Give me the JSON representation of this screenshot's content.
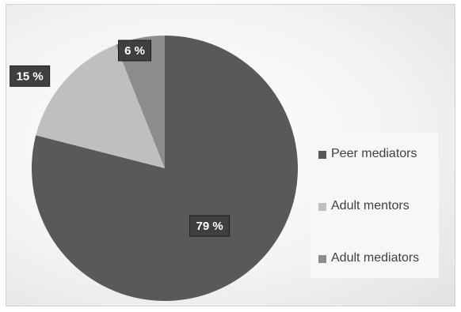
{
  "chart_data": {
    "type": "pie",
    "categories": [
      "Peer mediators",
      "Adult mentors",
      "Adult mediators"
    ],
    "values": [
      79,
      15,
      6
    ],
    "data_labels": [
      "79 %",
      "15 %",
      "6 %"
    ],
    "colors": [
      "#595959",
      "#bfbfbf",
      "#8c8c8c"
    ],
    "title": "",
    "legend_position": "right"
  }
}
